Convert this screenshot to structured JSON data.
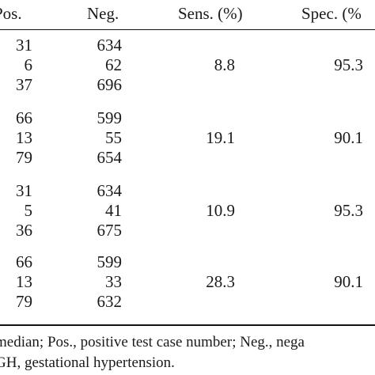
{
  "table": {
    "headers": [
      "Pos.",
      "Neg.",
      "Sens. (%)",
      "Spec. (%"
    ],
    "groups": [
      {
        "rows": [
          {
            "pos": "31",
            "neg": "634"
          },
          {
            "pos": "6",
            "neg": "62"
          },
          {
            "pos": "37",
            "neg": "696"
          }
        ],
        "sens": "8.8",
        "spec": "95.3"
      },
      {
        "rows": [
          {
            "pos": "66",
            "neg": "599"
          },
          {
            "pos": "13",
            "neg": "55"
          },
          {
            "pos": "79",
            "neg": "654"
          }
        ],
        "sens": "19.1",
        "spec": "90.1"
      },
      {
        "rows": [
          {
            "pos": "31",
            "neg": "634"
          },
          {
            "pos": "5",
            "neg": "41"
          },
          {
            "pos": "36",
            "neg": "675"
          }
        ],
        "sens": "10.9",
        "spec": "95.3"
      },
      {
        "rows": [
          {
            "pos": "66",
            "neg": "599"
          },
          {
            "pos": "13",
            "neg": "33"
          },
          {
            "pos": "79",
            "neg": "632"
          }
        ],
        "sens": "28.3",
        "spec": "90.1"
      }
    ]
  },
  "footnote": {
    "line1": "median; Pos., positive test case number; Neg., nega",
    "line2": "GH, gestational hypertension."
  }
}
